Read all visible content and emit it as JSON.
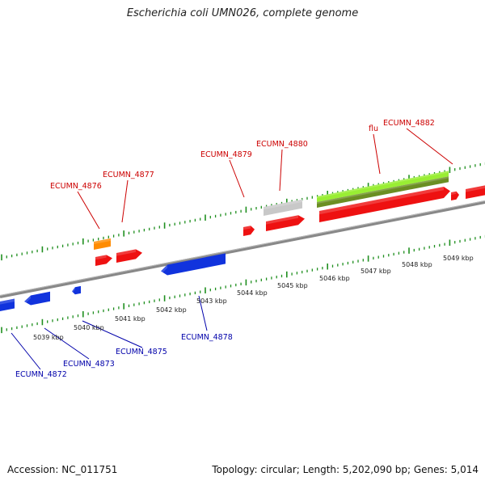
{
  "title": "Escherichia coli UMN026, complete genome",
  "footer": {
    "accession": "Accession: NC_011751",
    "summary": "Topology: circular; Length: 5,202,090 bp; Genes: 5,014"
  },
  "colors": {
    "backbone": "#888888",
    "forward_tick": "#1f8f1f",
    "reverse_tick": "#1f8f1f",
    "forward_gene": "#ee1111",
    "reverse_gene": "#1133dd",
    "orange_gene": "#ff8c00",
    "gray_gene": "#c8c8c8",
    "lime_gene": "#99ee33",
    "olive_gene": "#6b8e23",
    "forward_label": "#cc0000",
    "reverse_label": "#0000aa"
  },
  "position_labels": [
    "5039 kbp",
    "5040 kbp",
    "5041 kbp",
    "5042 kbp",
    "5043 kbp",
    "5044 kbp",
    "5045 kbp",
    "5046 kbp",
    "5047 kbp",
    "5048 kbp",
    "5049 kbp"
  ],
  "forward_labels": [
    "ECUMN_4876",
    "ECUMN_4877",
    "ECUMN_4879",
    "ECUMN_4880",
    "flu",
    "ECUMN_4882"
  ],
  "reverse_labels": [
    "ECUMN_4878",
    "ECUMN_4875",
    "ECUMN_4873",
    "ECUMN_4872"
  ]
}
